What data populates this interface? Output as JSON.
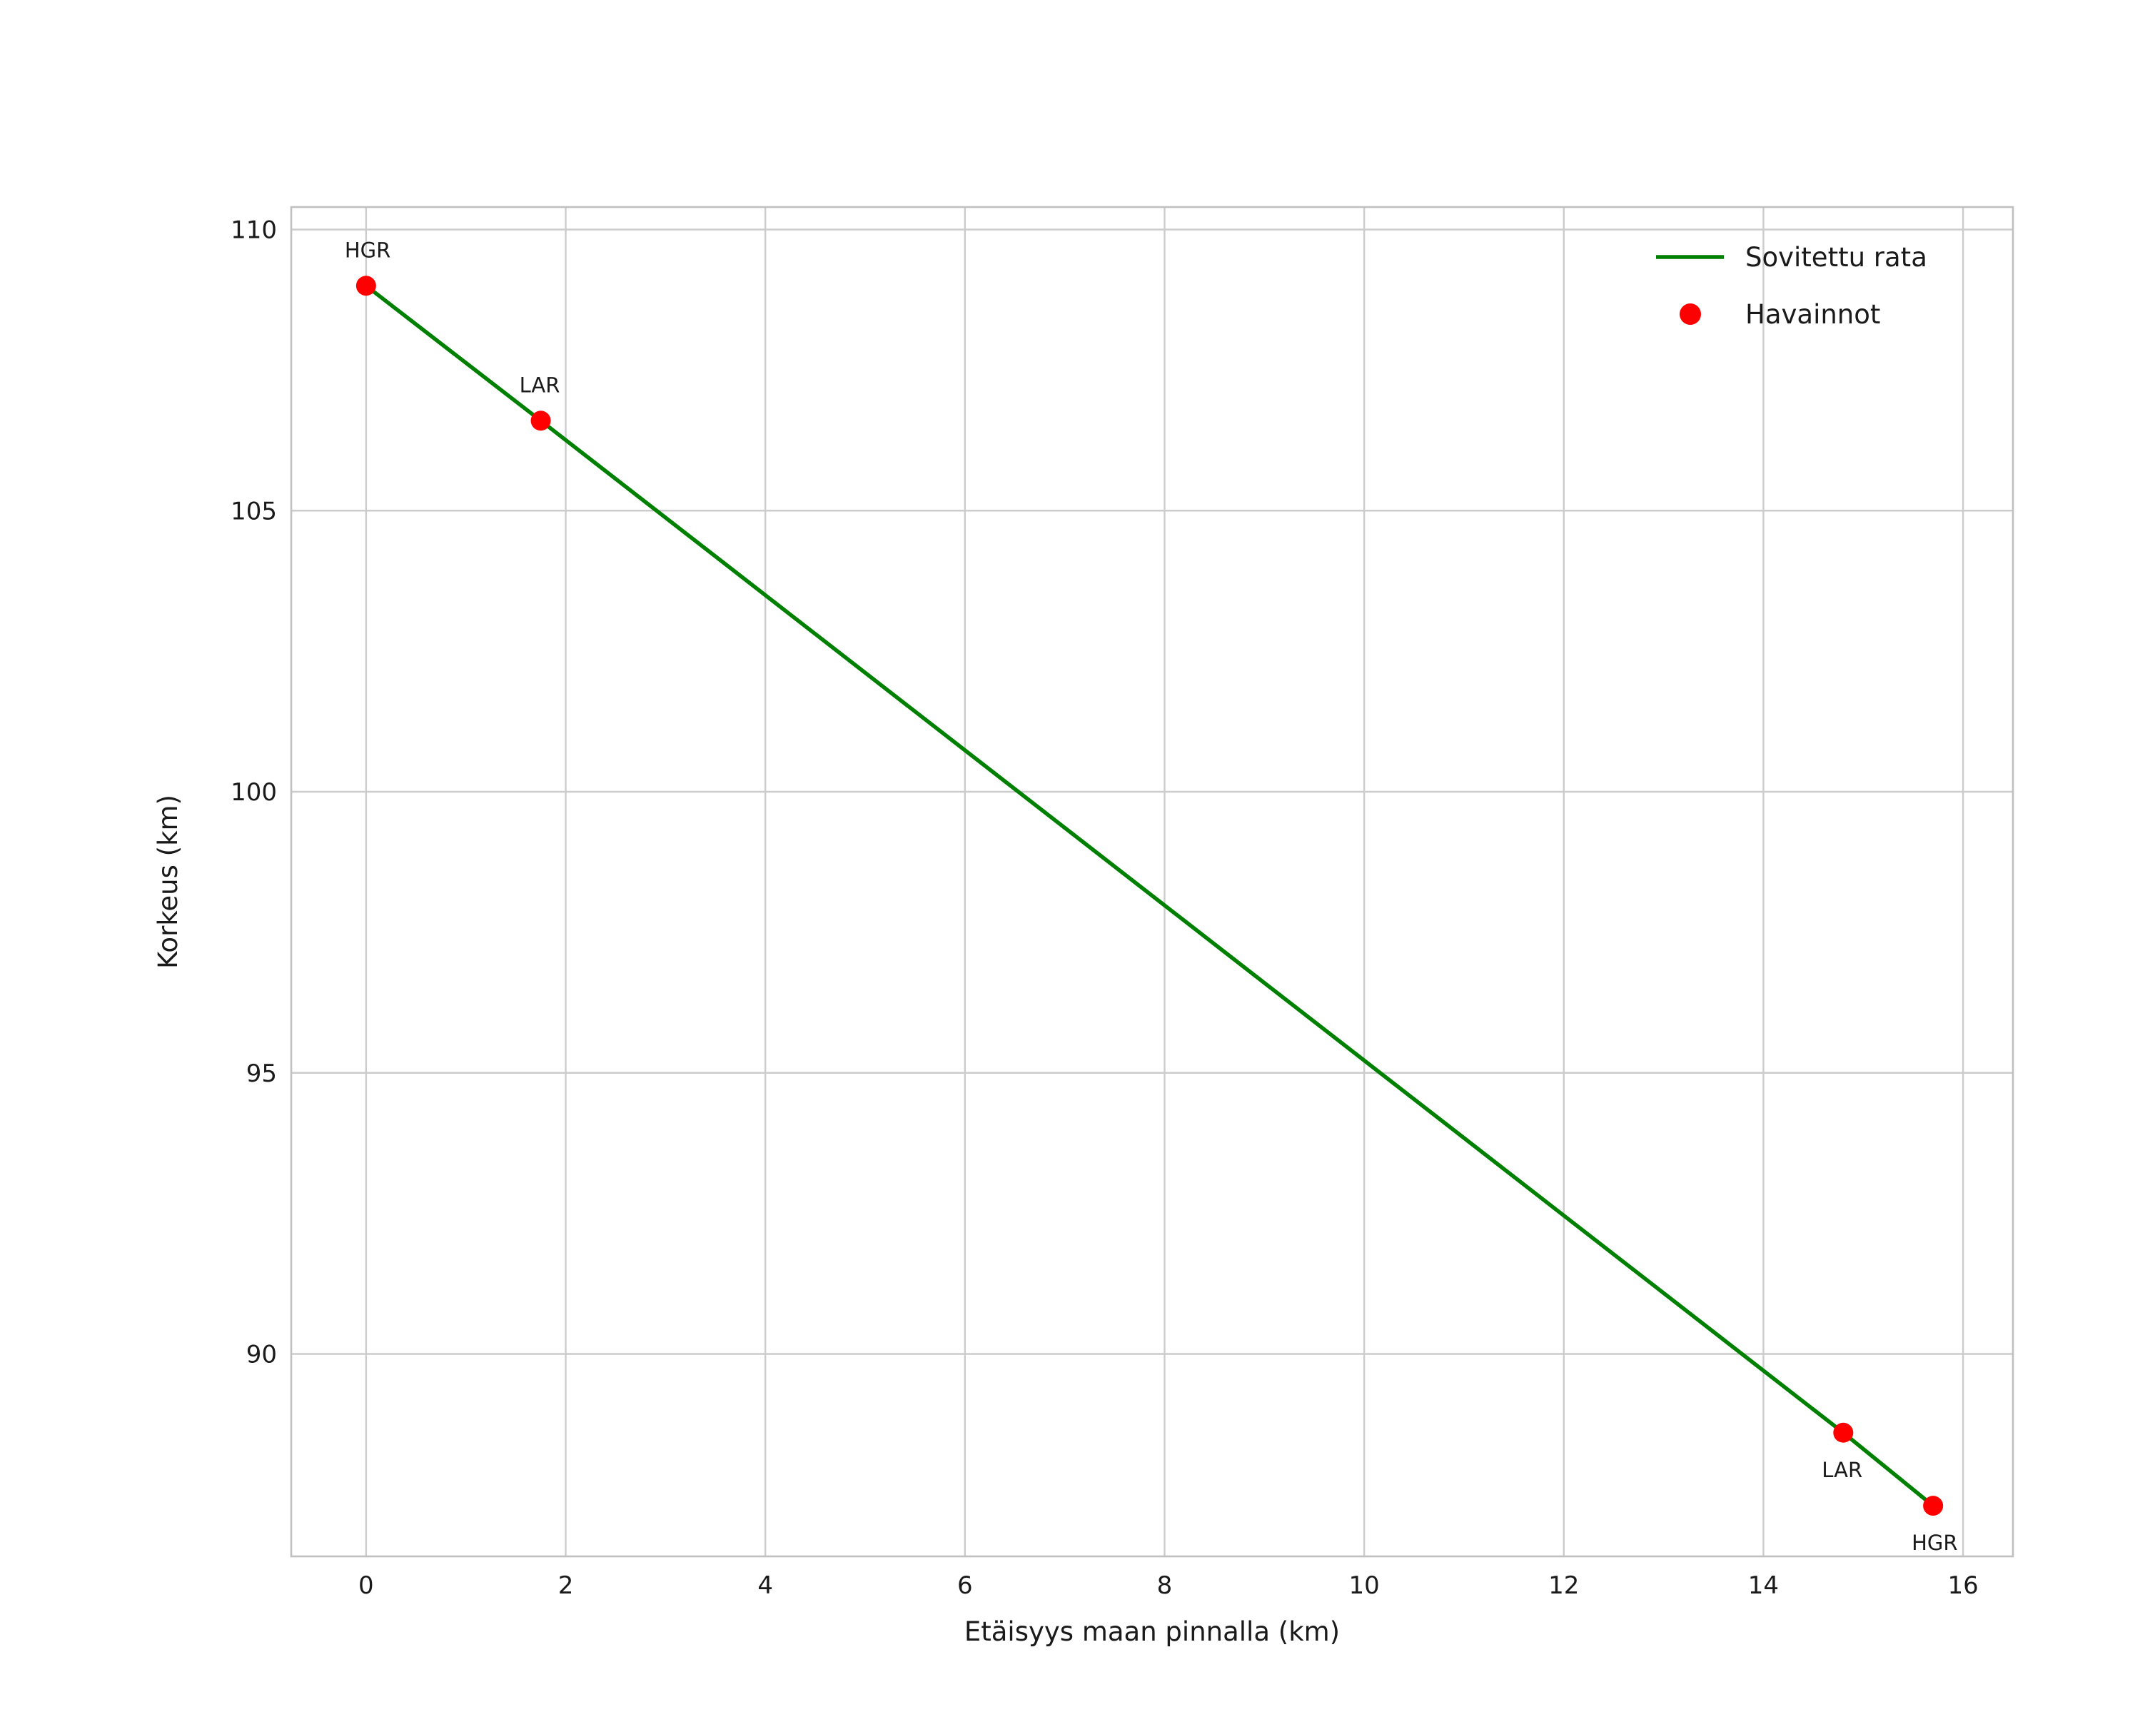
{
  "chart_data": {
    "type": "line",
    "title": "",
    "xlabel": "Etäisyys maan pinnalla (km)",
    "ylabel": "Korkeus (km)",
    "xlim": [
      -0.75,
      16.5
    ],
    "ylim": [
      86.4,
      110.4
    ],
    "xticks": [
      0,
      2,
      4,
      6,
      8,
      10,
      12,
      14,
      16
    ],
    "yticks": [
      90,
      95,
      100,
      105,
      110
    ],
    "grid": true,
    "grid_color": "#cccccc",
    "spine_color": "#c0c0c0",
    "background": "#ffffff",
    "legend_position": "upper right",
    "series": [
      {
        "name": "Sovitettu rata",
        "type": "line",
        "color": "#008000",
        "x": [
          0,
          1.75,
          14.8,
          15.7
        ],
        "y": [
          109.0,
          106.6,
          88.6,
          87.3
        ]
      },
      {
        "name": "Havainnot",
        "type": "scatter",
        "color": "#ff0000",
        "points": [
          {
            "x": 0,
            "y": 109.0,
            "label": "HGR",
            "label_position": "above"
          },
          {
            "x": 1.75,
            "y": 106.6,
            "label": "LAR",
            "label_position": "above"
          },
          {
            "x": 14.8,
            "y": 88.6,
            "label": "LAR",
            "label_position": "below"
          },
          {
            "x": 15.7,
            "y": 87.3,
            "label": "HGR",
            "label_position": "below"
          }
        ]
      }
    ],
    "legend": [
      {
        "label": "Sovitettu rata",
        "marker": "line",
        "color": "#008000"
      },
      {
        "label": "Havainnot",
        "marker": "dot",
        "color": "#ff0000"
      }
    ]
  }
}
